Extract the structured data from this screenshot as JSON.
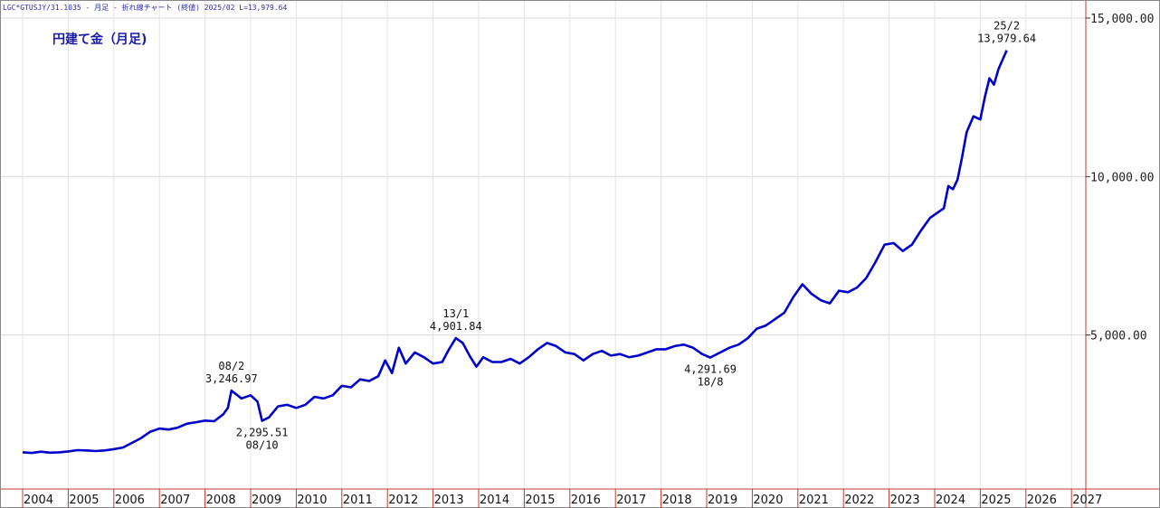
{
  "header": {
    "info": "LGC*GTUSJY/31.1035 - 月足 - 折れ線チャート (終値)  2025/02 L=13,979.64"
  },
  "chart_data": {
    "type": "line",
    "title": "円建て金（月足)",
    "ylim": [
      0,
      15000
    ],
    "y_ticks": [
      {
        "value": 15000,
        "label": "15,000.00"
      },
      {
        "value": 10000,
        "label": "10,000.00"
      },
      {
        "value": 5000,
        "label": "5,000.00"
      }
    ],
    "x_range": [
      2003.5,
      2027.5
    ],
    "x_tick_labels": [
      "2004",
      "2005",
      "2006",
      "2007",
      "2008",
      "2009",
      "2010",
      "2011",
      "2012",
      "2013",
      "2014",
      "2015",
      "2016",
      "2017",
      "2018",
      "2019",
      "2020",
      "2021",
      "2022",
      "2023",
      "2024",
      "2025",
      "2026",
      "2027"
    ],
    "grid": true,
    "line_color": "#0000cc",
    "annotations": [
      {
        "period": "08/2",
        "value": "3,246.97",
        "x": 2008.08,
        "y": 3246.97,
        "position": "above"
      },
      {
        "period": "08/10",
        "value": "2,295.51",
        "x": 2008.75,
        "y": 2295.51,
        "position": "below"
      },
      {
        "period": "13/1",
        "value": "4,901.84",
        "x": 2013.0,
        "y": 4901.84,
        "position": "above"
      },
      {
        "period": "18/8",
        "value": "4,291.69",
        "x": 2018.58,
        "y": 4291.69,
        "position": "below"
      },
      {
        "period": "25/2",
        "value": "13,979.64",
        "x": 2025.08,
        "y": 13979.64,
        "position": "above"
      }
    ],
    "series": [
      {
        "points": [
          [
            2003.5,
            1300
          ],
          [
            2003.7,
            1280
          ],
          [
            2003.9,
            1320
          ],
          [
            2004.1,
            1290
          ],
          [
            2004.3,
            1300
          ],
          [
            2004.5,
            1330
          ],
          [
            2004.7,
            1370
          ],
          [
            2004.9,
            1360
          ],
          [
            2005.1,
            1340
          ],
          [
            2005.3,
            1360
          ],
          [
            2005.5,
            1400
          ],
          [
            2005.7,
            1450
          ],
          [
            2005.9,
            1600
          ],
          [
            2006.1,
            1750
          ],
          [
            2006.3,
            1950
          ],
          [
            2006.5,
            2050
          ],
          [
            2006.7,
            2020
          ],
          [
            2006.9,
            2080
          ],
          [
            2007.1,
            2200
          ],
          [
            2007.3,
            2250
          ],
          [
            2007.5,
            2300
          ],
          [
            2007.7,
            2280
          ],
          [
            2007.9,
            2500
          ],
          [
            2008.0,
            2700
          ],
          [
            2008.08,
            3246.97
          ],
          [
            2008.3,
            3000
          ],
          [
            2008.5,
            3100
          ],
          [
            2008.65,
            2900
          ],
          [
            2008.75,
            2295.51
          ],
          [
            2008.9,
            2400
          ],
          [
            2009.1,
            2750
          ],
          [
            2009.3,
            2800
          ],
          [
            2009.5,
            2700
          ],
          [
            2009.7,
            2800
          ],
          [
            2009.9,
            3050
          ],
          [
            2010.1,
            3000
          ],
          [
            2010.3,
            3100
          ],
          [
            2010.5,
            3400
          ],
          [
            2010.7,
            3350
          ],
          [
            2010.9,
            3600
          ],
          [
            2011.1,
            3550
          ],
          [
            2011.3,
            3700
          ],
          [
            2011.45,
            4200
          ],
          [
            2011.6,
            3800
          ],
          [
            2011.75,
            4600
          ],
          [
            2011.9,
            4100
          ],
          [
            2012.1,
            4450
          ],
          [
            2012.3,
            4300
          ],
          [
            2012.5,
            4100
          ],
          [
            2012.7,
            4150
          ],
          [
            2012.85,
            4550
          ],
          [
            2013.0,
            4901.84
          ],
          [
            2013.15,
            4750
          ],
          [
            2013.3,
            4350
          ],
          [
            2013.45,
            4000
          ],
          [
            2013.6,
            4300
          ],
          [
            2013.8,
            4150
          ],
          [
            2014.0,
            4150
          ],
          [
            2014.2,
            4250
          ],
          [
            2014.4,
            4100
          ],
          [
            2014.6,
            4300
          ],
          [
            2014.8,
            4550
          ],
          [
            2015.0,
            4750
          ],
          [
            2015.2,
            4650
          ],
          [
            2015.4,
            4450
          ],
          [
            2015.6,
            4400
          ],
          [
            2015.8,
            4200
          ],
          [
            2016.0,
            4400
          ],
          [
            2016.2,
            4500
          ],
          [
            2016.4,
            4350
          ],
          [
            2016.6,
            4400
          ],
          [
            2016.8,
            4300
          ],
          [
            2017.0,
            4350
          ],
          [
            2017.2,
            4450
          ],
          [
            2017.4,
            4550
          ],
          [
            2017.6,
            4550
          ],
          [
            2017.8,
            4650
          ],
          [
            2018.0,
            4700
          ],
          [
            2018.2,
            4600
          ],
          [
            2018.4,
            4400
          ],
          [
            2018.58,
            4291.69
          ],
          [
            2018.8,
            4450
          ],
          [
            2019.0,
            4600
          ],
          [
            2019.2,
            4700
          ],
          [
            2019.4,
            4900
          ],
          [
            2019.6,
            5200
          ],
          [
            2019.8,
            5300
          ],
          [
            2020.0,
            5500
          ],
          [
            2020.2,
            5700
          ],
          [
            2020.4,
            6200
          ],
          [
            2020.6,
            6600
          ],
          [
            2020.8,
            6300
          ],
          [
            2021.0,
            6100
          ],
          [
            2021.2,
            6000
          ],
          [
            2021.4,
            6400
          ],
          [
            2021.6,
            6350
          ],
          [
            2021.8,
            6500
          ],
          [
            2022.0,
            6800
          ],
          [
            2022.2,
            7300
          ],
          [
            2022.4,
            7850
          ],
          [
            2022.6,
            7900
          ],
          [
            2022.8,
            7650
          ],
          [
            2023.0,
            7850
          ],
          [
            2023.2,
            8300
          ],
          [
            2023.4,
            8700
          ],
          [
            2023.6,
            8900
          ],
          [
            2023.7,
            9000
          ],
          [
            2023.8,
            9700
          ],
          [
            2023.9,
            9600
          ],
          [
            2024.0,
            9900
          ],
          [
            2024.1,
            10600
          ],
          [
            2024.2,
            11400
          ],
          [
            2024.35,
            11900
          ],
          [
            2024.5,
            11800
          ],
          [
            2024.6,
            12500
          ],
          [
            2024.7,
            13100
          ],
          [
            2024.8,
            12900
          ],
          [
            2024.9,
            13400
          ],
          [
            2025.08,
            13979.64
          ]
        ]
      }
    ]
  }
}
